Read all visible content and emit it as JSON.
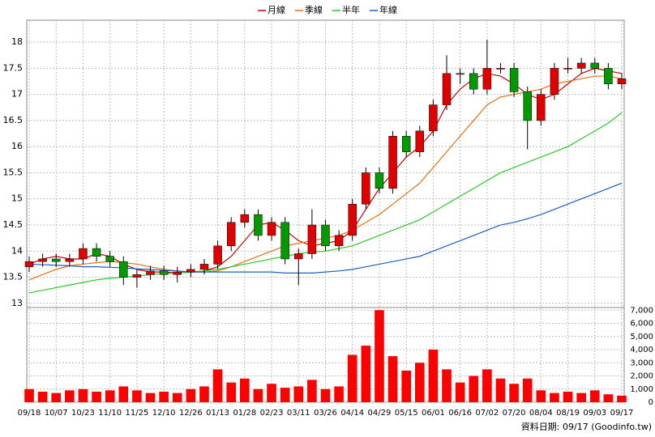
{
  "chart_data": {
    "type": "candlestick",
    "source": "資料日期: 09/17 (Goodinfo.tw)",
    "categories": [
      "09/18",
      null,
      "10/07",
      null,
      "10/23",
      null,
      "11/10",
      null,
      "11/25",
      null,
      "12/10",
      null,
      "12/26",
      null,
      "01/13",
      null,
      "01/28",
      null,
      "02/23",
      null,
      "03/11",
      null,
      "03/26",
      null,
      "04/14",
      null,
      "04/29",
      null,
      "05/15",
      null,
      "06/01",
      null,
      "06/16",
      null,
      "07/02",
      null,
      "07/20",
      null,
      "08/04",
      null,
      "08/19",
      null,
      "09/03",
      null,
      "09/17"
    ],
    "open": [
      13.7,
      13.8,
      13.85,
      13.8,
      13.85,
      14.05,
      13.9,
      13.8,
      13.5,
      13.55,
      13.62,
      13.55,
      13.6,
      13.65,
      13.75,
      14.1,
      14.55,
      14.7,
      14.3,
      14.55,
      13.85,
      13.95,
      14.5,
      14.1,
      14.3,
      14.9,
      15.5,
      15.2,
      16.2,
      15.9,
      16.3,
      16.8,
      17.4,
      17.4,
      17.1,
      17.5,
      17.5,
      17.05,
      16.5,
      17.0,
      17.5,
      17.5,
      17.6,
      17.5,
      17.2
    ],
    "high": [
      13.9,
      13.95,
      13.95,
      13.95,
      14.15,
      14.15,
      14.0,
      13.9,
      13.65,
      13.72,
      13.72,
      13.7,
      13.75,
      13.85,
      14.2,
      14.65,
      14.8,
      14.8,
      14.65,
      14.65,
      14.05,
      14.8,
      14.6,
      14.4,
      15.0,
      15.6,
      15.6,
      16.3,
      16.3,
      16.4,
      16.9,
      17.75,
      17.5,
      17.5,
      18.05,
      17.6,
      17.6,
      17.15,
      17.1,
      17.6,
      17.7,
      17.7,
      17.7,
      17.6,
      17.4
    ],
    "low": [
      13.6,
      13.7,
      13.7,
      13.7,
      13.75,
      13.8,
      13.7,
      13.35,
      13.3,
      13.45,
      13.45,
      13.4,
      13.5,
      13.55,
      13.65,
      14.0,
      14.45,
      14.2,
      14.2,
      13.75,
      13.35,
      13.85,
      14.0,
      14.0,
      14.2,
      14.8,
      15.1,
      15.1,
      15.8,
      15.8,
      16.2,
      16.7,
      17.2,
      17.0,
      17.0,
      17.4,
      16.95,
      15.95,
      16.4,
      16.9,
      17.4,
      17.4,
      17.4,
      17.1,
      17.1
    ],
    "close": [
      13.8,
      13.85,
      13.8,
      13.85,
      14.05,
      13.9,
      13.8,
      13.5,
      13.55,
      13.62,
      13.55,
      13.6,
      13.65,
      13.75,
      14.1,
      14.55,
      14.7,
      14.3,
      14.55,
      13.85,
      13.95,
      14.5,
      14.1,
      14.3,
      14.9,
      15.5,
      15.2,
      16.2,
      15.9,
      16.3,
      16.8,
      17.4,
      17.4,
      17.1,
      17.5,
      17.5,
      17.05,
      16.5,
      17.0,
      17.5,
      17.5,
      17.6,
      17.5,
      17.2,
      17.3
    ],
    "up_color": "#e00000",
    "down_color": "#009900",
    "series": [
      {
        "name": "月線",
        "color": "#cc0000",
        "values": [
          13.75,
          13.85,
          13.9,
          13.85,
          13.85,
          13.95,
          13.9,
          13.75,
          13.65,
          13.6,
          13.6,
          13.58,
          13.6,
          13.62,
          13.7,
          13.9,
          14.2,
          14.5,
          14.55,
          14.4,
          14.2,
          14.1,
          14.15,
          14.2,
          14.4,
          14.8,
          15.2,
          15.5,
          15.8,
          16.0,
          16.3,
          16.8,
          17.1,
          17.3,
          17.4,
          17.35,
          17.2,
          17.0,
          16.9,
          17.0,
          17.2,
          17.4,
          17.5,
          17.45,
          17.4
        ]
      },
      {
        "name": "季線",
        "color": "#e87010",
        "values": [
          13.45,
          13.55,
          13.65,
          13.72,
          13.75,
          13.78,
          13.8,
          13.78,
          13.75,
          13.7,
          13.65,
          13.62,
          13.6,
          13.6,
          13.62,
          13.7,
          13.8,
          13.9,
          14.0,
          14.1,
          14.15,
          14.2,
          14.25,
          14.3,
          14.4,
          14.55,
          14.7,
          14.9,
          15.1,
          15.3,
          15.6,
          15.9,
          16.2,
          16.5,
          16.8,
          16.95,
          17.0,
          17.05,
          17.1,
          17.2,
          17.25,
          17.3,
          17.35,
          17.35,
          17.3
        ]
      },
      {
        "name": "半年",
        "color": "#22cc22",
        "values": [
          13.2,
          13.25,
          13.3,
          13.35,
          13.4,
          13.45,
          13.48,
          13.5,
          13.52,
          13.55,
          13.57,
          13.58,
          13.6,
          13.62,
          13.65,
          13.7,
          13.75,
          13.8,
          13.85,
          13.9,
          13.95,
          13.98,
          14.0,
          14.05,
          14.1,
          14.2,
          14.3,
          14.4,
          14.5,
          14.6,
          14.75,
          14.9,
          15.05,
          15.2,
          15.35,
          15.5,
          15.6,
          15.7,
          15.8,
          15.9,
          16.0,
          16.15,
          16.3,
          16.45,
          16.65
        ]
      },
      {
        "name": "年線",
        "color": "#1a5fc8",
        "values": [
          13.75,
          13.74,
          13.73,
          13.72,
          13.7,
          13.7,
          13.69,
          13.68,
          13.66,
          13.65,
          13.63,
          13.62,
          13.6,
          13.6,
          13.6,
          13.6,
          13.6,
          13.6,
          13.6,
          13.58,
          13.58,
          13.58,
          13.6,
          13.62,
          13.65,
          13.7,
          13.75,
          13.8,
          13.85,
          13.9,
          14.0,
          14.1,
          14.2,
          14.3,
          14.4,
          14.5,
          14.55,
          14.62,
          14.7,
          14.8,
          14.9,
          15.0,
          15.1,
          15.2,
          15.3
        ]
      }
    ],
    "ylim": [
      12.92,
      18.42
    ],
    "yticks": [
      13,
      13.5,
      14,
      14.5,
      15,
      15.5,
      16,
      16.5,
      17,
      17.5,
      18
    ],
    "grid": true,
    "volume": {
      "color": "#ff0000",
      "values": [
        1000,
        800,
        700,
        900,
        1000,
        800,
        900,
        1200,
        900,
        700,
        800,
        700,
        1000,
        1200,
        2500,
        1500,
        1800,
        1000,
        1400,
        1100,
        1200,
        1700,
        1000,
        1200,
        3600,
        4300,
        7000,
        3500,
        2400,
        3000,
        4000,
        2500,
        1500,
        2000,
        2500,
        1800,
        1400,
        1800,
        900,
        700,
        800,
        700,
        900,
        600,
        500
      ],
      "ylim": [
        0,
        7200
      ],
      "yticks": [
        0,
        {
          "value": 1000,
          "label": "1,000"
        },
        {
          "value": 2000,
          "label": "2,000"
        },
        {
          "value": 3000,
          "label": "3,000"
        },
        {
          "value": 4000,
          "label": "4,000"
        },
        {
          "value": 5000,
          "label": "5,000"
        },
        {
          "value": 6000,
          "label": "6,000"
        },
        {
          "value": 7000,
          "label": "7,000"
        }
      ]
    }
  }
}
